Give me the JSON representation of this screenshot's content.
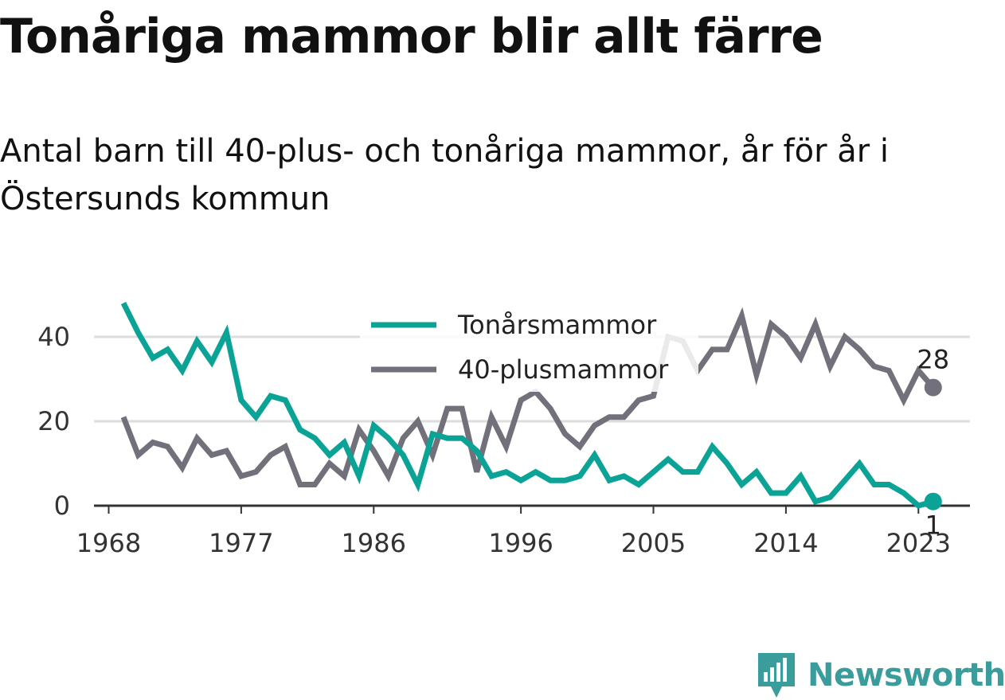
{
  "title": "Tonåriga mammor blir allt färre",
  "subtitle": "Antal barn till 40-plus- och tonåriga mammor, år för år i Östersunds kommun",
  "brand": {
    "name": "Newsworthy",
    "color": "#3b9c9c"
  },
  "chart_data": {
    "type": "line",
    "x": [
      1969,
      1970,
      1971,
      1972,
      1973,
      1974,
      1975,
      1976,
      1977,
      1978,
      1979,
      1980,
      1981,
      1982,
      1983,
      1984,
      1985,
      1986,
      1987,
      1988,
      1989,
      1990,
      1991,
      1992,
      1993,
      1994,
      1995,
      1996,
      1997,
      1998,
      1999,
      2000,
      2001,
      2002,
      2003,
      2004,
      2005,
      2006,
      2007,
      2008,
      2009,
      2010,
      2011,
      2012,
      2013,
      2014,
      2015,
      2016,
      2017,
      2018,
      2019,
      2020,
      2021,
      2022,
      2023,
      2024
    ],
    "x_ticks": [
      "1968",
      "1977",
      "1986",
      "1996",
      "2005",
      "2014",
      "2023"
    ],
    "y_ticks": [
      "0",
      "20",
      "40"
    ],
    "ylim": [
      0,
      50
    ],
    "xlim": [
      1967,
      2026.5
    ],
    "grid": true,
    "legend_position": "top-center",
    "series": [
      {
        "name": "Tonårsmammor",
        "color": "#0aa396",
        "values": [
          48,
          41,
          35,
          37,
          32,
          39,
          34,
          41,
          25,
          21,
          26,
          25,
          18,
          16,
          12,
          15,
          7,
          19,
          16,
          12,
          5,
          17,
          16,
          16,
          13,
          7,
          8,
          6,
          8,
          6,
          6,
          7,
          12,
          6,
          7,
          5,
          8,
          11,
          8,
          8,
          14,
          10,
          5,
          8,
          3,
          3,
          7,
          1,
          2,
          6,
          10,
          5,
          5,
          3,
          0,
          1
        ],
        "end_label": "1"
      },
      {
        "name": "40-plusmammor",
        "color": "#72707a",
        "values": [
          21,
          12,
          15,
          14,
          9,
          16,
          12,
          13,
          7,
          8,
          12,
          14,
          5,
          5,
          10,
          7,
          18,
          13,
          7,
          16,
          20,
          12,
          23,
          23,
          8,
          21,
          14,
          25,
          27,
          23,
          17,
          14,
          19,
          21,
          21,
          25,
          26,
          40,
          39,
          32,
          37,
          37,
          45,
          31,
          43,
          40,
          35,
          43,
          33,
          40,
          37,
          33,
          32,
          25,
          32,
          28
        ],
        "end_label": "28"
      }
    ]
  }
}
